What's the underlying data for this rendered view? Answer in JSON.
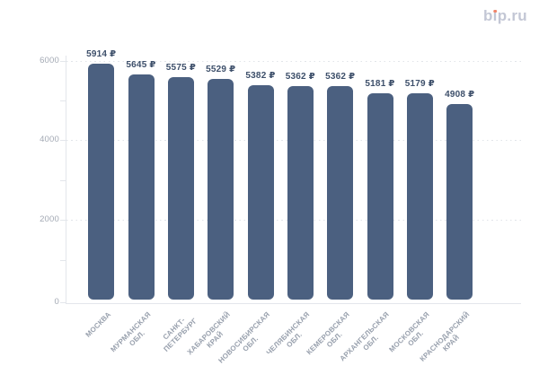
{
  "brand": {
    "name": "bip.ru",
    "color": "#c3c7d5",
    "dot_color": "#f0846a"
  },
  "chart_data": {
    "type": "bar",
    "title": "",
    "xlabel": "",
    "ylabel": "",
    "categories": [
      "МОСКВА",
      "МУРМАНСКАЯ ОБЛ.",
      "САНКТ-ПЕТЕРБУРГ",
      "ХАБАРОВСКИЙ КРАЙ",
      "НОВОСИБИРСКАЯ ОБЛ.",
      "ЧЕЛЯБИНСКАЯ ОБЛ.",
      "КЕМЕРОВСКАЯ ОБЛ.",
      "АРХАНГЕЛЬСКАЯ ОБЛ.",
      "МОСКОВСКАЯ ОБЛ.",
      "КРАСНОДАРСКИЙ КРАЙ"
    ],
    "category_lines": [
      [
        "МОСКВА"
      ],
      [
        "МУРМАНСКАЯ",
        "ОБЛ."
      ],
      [
        "САНКТ-",
        "ПЕТЕРБУРГ"
      ],
      [
        "ХАБАРОВСКИЙ",
        "КРАЙ"
      ],
      [
        "НОВОСИБИРСКАЯ",
        "ОБЛ."
      ],
      [
        "ЧЕЛЯБИНСКАЯ",
        "ОБЛ."
      ],
      [
        "КЕМЕРОВСКАЯ",
        "ОБЛ."
      ],
      [
        "АРХАНГЕЛЬСКАЯ",
        "ОБЛ."
      ],
      [
        "МОСКОВСКАЯ",
        "ОБЛ."
      ],
      [
        "КРАСНОДАРСКИЙ",
        "КРАЙ"
      ]
    ],
    "values": [
      5914,
      5645,
      5575,
      5529,
      5382,
      5362,
      5362,
      5181,
      5179,
      4908
    ],
    "value_labels": [
      "5914 ₽",
      "5645 ₽",
      "5575 ₽",
      "5529 ₽",
      "5382 ₽",
      "5362 ₽",
      "5362 ₽",
      "5181 ₽",
      "5179 ₽",
      "4908 ₽"
    ],
    "currency": "₽",
    "ylim": [
      0,
      6000
    ],
    "yticks": [
      0,
      2000,
      4000,
      6000
    ],
    "ytick_labels": [
      "0",
      "2000",
      "4000",
      "6000"
    ],
    "minor_tick_step": 1000,
    "grid": "dotted-horizontal",
    "legend_position": "none",
    "colors": {
      "bar": "#4b6080",
      "value_label": "#3d4f6a",
      "category_label": "#98a0ad",
      "ytick_label": "#a3a9b4",
      "gridline": "#e1e4e9",
      "axis_line": "#e3e6eb"
    }
  }
}
